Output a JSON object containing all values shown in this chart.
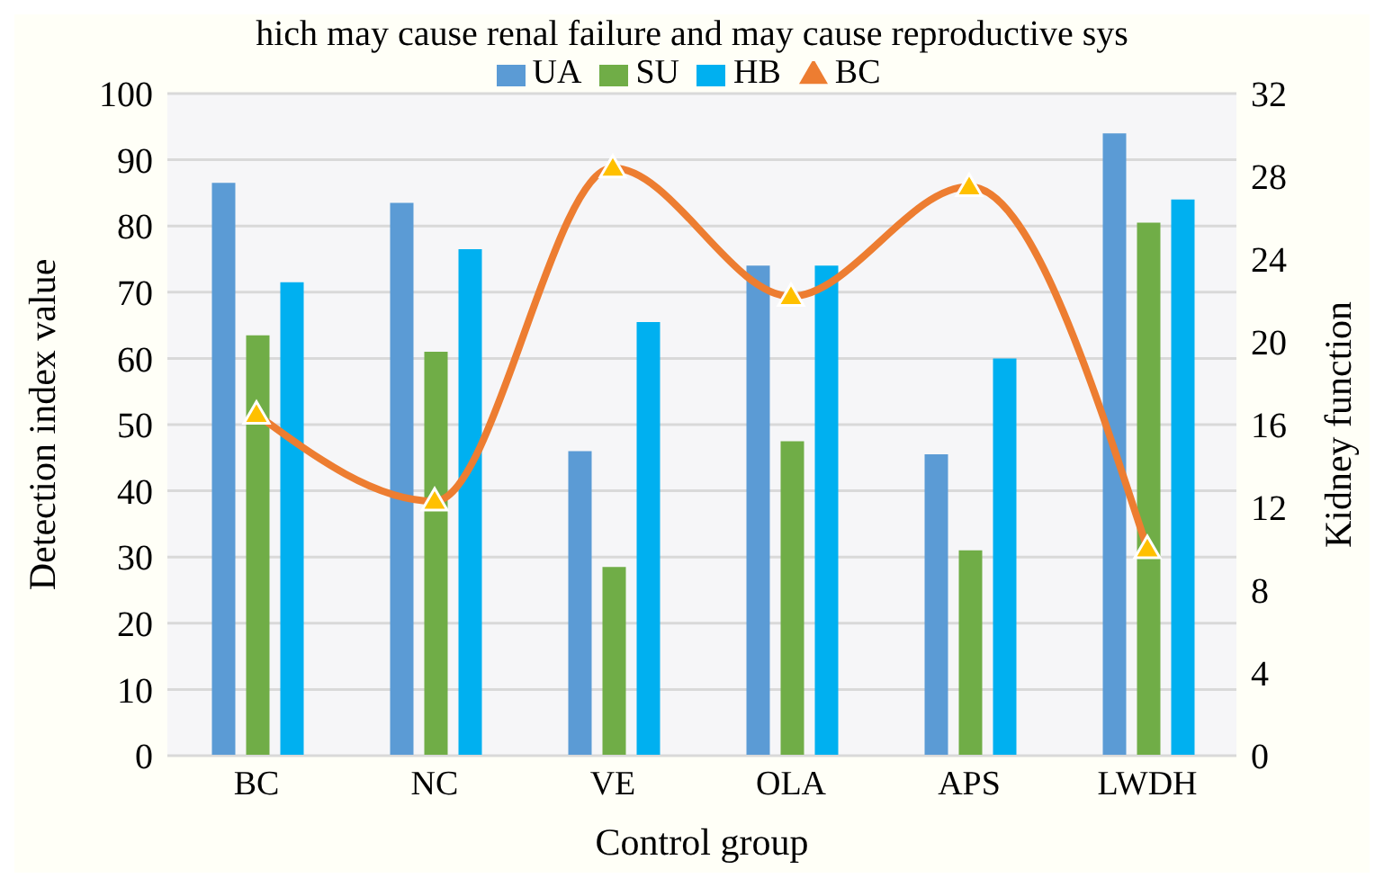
{
  "chart_data": {
    "type": "bar",
    "annotations": [
      "hich may cause renal failure and may cause reproductive sys"
    ],
    "xlabel": "Control group",
    "ylabel": "Detection index value",
    "y2label": "Kidney function",
    "categories": [
      "BC",
      "NC",
      "VE",
      "OLA",
      "APS",
      "LWDH"
    ],
    "series": [
      {
        "name": "UA",
        "color": "#5b9bd5",
        "values": [
          86.5,
          83.5,
          46,
          74,
          45.5,
          94
        ]
      },
      {
        "name": "SU",
        "color": "#70ad47",
        "values": [
          63.5,
          61,
          28.5,
          47.5,
          31,
          80.5
        ]
      },
      {
        "name": "HB",
        "color": "#00b0f0",
        "values": [
          71.5,
          76.5,
          65.5,
          74,
          60,
          84
        ]
      },
      {
        "name": "BC",
        "type": "line",
        "axis": "y2",
        "color": "#ed7d31",
        "marker": "triangle",
        "values": [
          16.5,
          12.3,
          28.4,
          22.2,
          27.5,
          10
        ]
      }
    ],
    "ylim": [
      0,
      100
    ],
    "yticks": [
      0,
      10,
      20,
      30,
      40,
      50,
      60,
      70,
      80,
      90,
      100
    ],
    "y2lim": [
      0,
      32
    ],
    "y2ticks": [
      0,
      4,
      8,
      12,
      16,
      20,
      24,
      28,
      32
    ],
    "grid": "y",
    "legend": "top"
  }
}
